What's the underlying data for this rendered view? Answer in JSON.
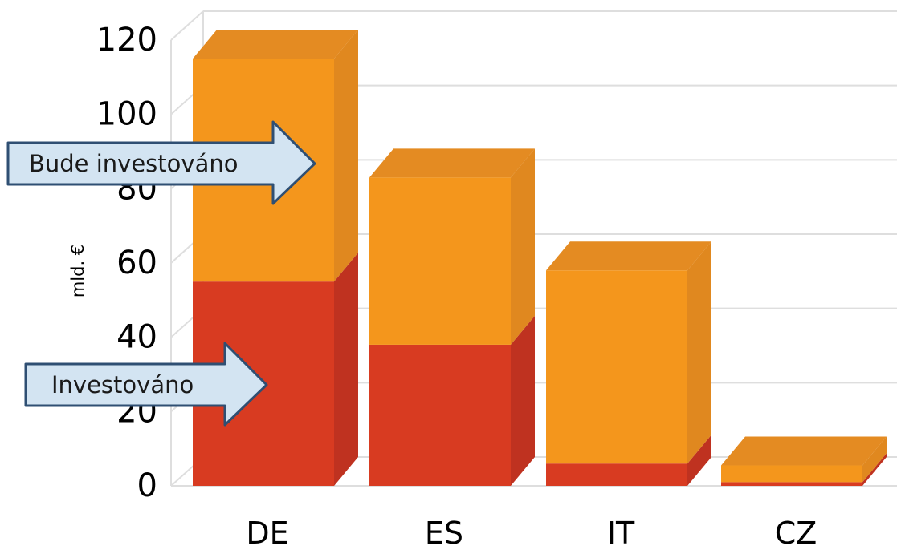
{
  "chart_data": {
    "type": "bar",
    "stacked": true,
    "categories": [
      "DE",
      "ES",
      "IT",
      "CZ"
    ],
    "series": [
      {
        "name": "Investováno",
        "values": [
          55,
          38,
          6,
          1
        ]
      },
      {
        "name": "Bude investováno",
        "values": [
          60,
          45,
          52,
          4.5
        ]
      }
    ],
    "ylabel": "mld. €",
    "xlabel": "",
    "ylim": [
      0,
      120
    ],
    "yticks": [
      0,
      20,
      40,
      60,
      80,
      100,
      120
    ],
    "grid": true,
    "three_d": true
  },
  "colors": {
    "investovano_front": "#d83b21",
    "investovano_side": "#bf3220",
    "bude_front": "#f4961c",
    "bude_side": "#e0881f",
    "bude_top": "#e48b22",
    "grid": "#dedede",
    "arrow_fill": "#d3e4f2",
    "arrow_stroke": "#2f4f73"
  },
  "annotations": [
    {
      "text": "Bude investováno",
      "series": "Bude investováno"
    },
    {
      "text": "Investováno",
      "series": "Investováno"
    }
  ]
}
